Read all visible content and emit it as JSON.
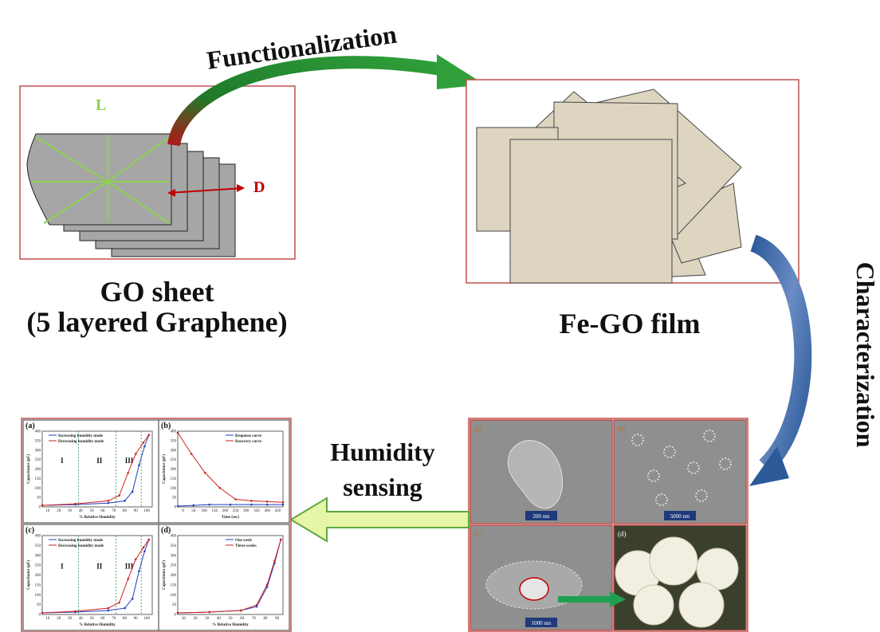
{
  "steps": {
    "functionalization": "Functionalization",
    "characterization": "Characterization",
    "humidity_sensing": [
      "Humidity",
      "sensing"
    ]
  },
  "go_sheet": {
    "label_l": "L",
    "label_d": "D",
    "caption": [
      "GO sheet",
      "(5 layered Graphene)"
    ]
  },
  "fe_go": {
    "caption": "Fe-GO film"
  },
  "sem": {
    "panels": [
      {
        "label": "(a)",
        "scale": "200 nm"
      },
      {
        "label": "(b)",
        "scale": "5000 nm"
      },
      {
        "label": "(c)",
        "scale": "1000 nm"
      },
      {
        "label": "(d)"
      }
    ]
  },
  "plots": {
    "panels": [
      {
        "label": "(a)",
        "legend": [
          "Increasing humidity mode",
          "Decreasing humidity mode"
        ],
        "regions": [
          "I",
          "II",
          "III"
        ],
        "y_title": "Capacitance (pF)",
        "x_title": "% Relative Humidity",
        "yticks": [
          0,
          50,
          100,
          150,
          200,
          250,
          300,
          350,
          400
        ],
        "xticks": [
          10,
          20,
          30,
          40,
          50,
          60,
          70,
          80,
          90,
          100
        ]
      },
      {
        "label": "(b)",
        "legend": [
          "Response curve",
          "Recovery curve"
        ],
        "y_title": "Capacitance (pF)",
        "x_title": "Time (sec)",
        "yticks": [
          0,
          50,
          100,
          150,
          200,
          250,
          300,
          350,
          400
        ],
        "xticks": [
          0,
          50,
          100,
          150,
          200,
          250,
          300,
          350,
          400,
          450
        ]
      },
      {
        "label": "(c)",
        "legend": [
          "Increasing humidity mode",
          "Decreasing humidity mode"
        ],
        "regions": [
          "I",
          "II",
          "III"
        ],
        "y_title": "Capacitance (pF)",
        "x_title": "% Relative Humidity",
        "yticks": [
          0,
          50,
          100,
          150,
          200,
          250,
          300,
          350,
          400
        ],
        "xticks": [
          10,
          20,
          30,
          40,
          50,
          60,
          70,
          80,
          90,
          100
        ]
      },
      {
        "label": "(d)",
        "legend": [
          "One week",
          "Three weeks"
        ],
        "y_title": "Capacitance (pF)",
        "x_title": "% Relative Humidity",
        "yticks": [
          0,
          50,
          100,
          150,
          200,
          250,
          300,
          350,
          400
        ],
        "xticks": [
          10,
          20,
          30,
          40,
          50,
          60,
          70,
          80,
          90
        ]
      }
    ]
  }
}
